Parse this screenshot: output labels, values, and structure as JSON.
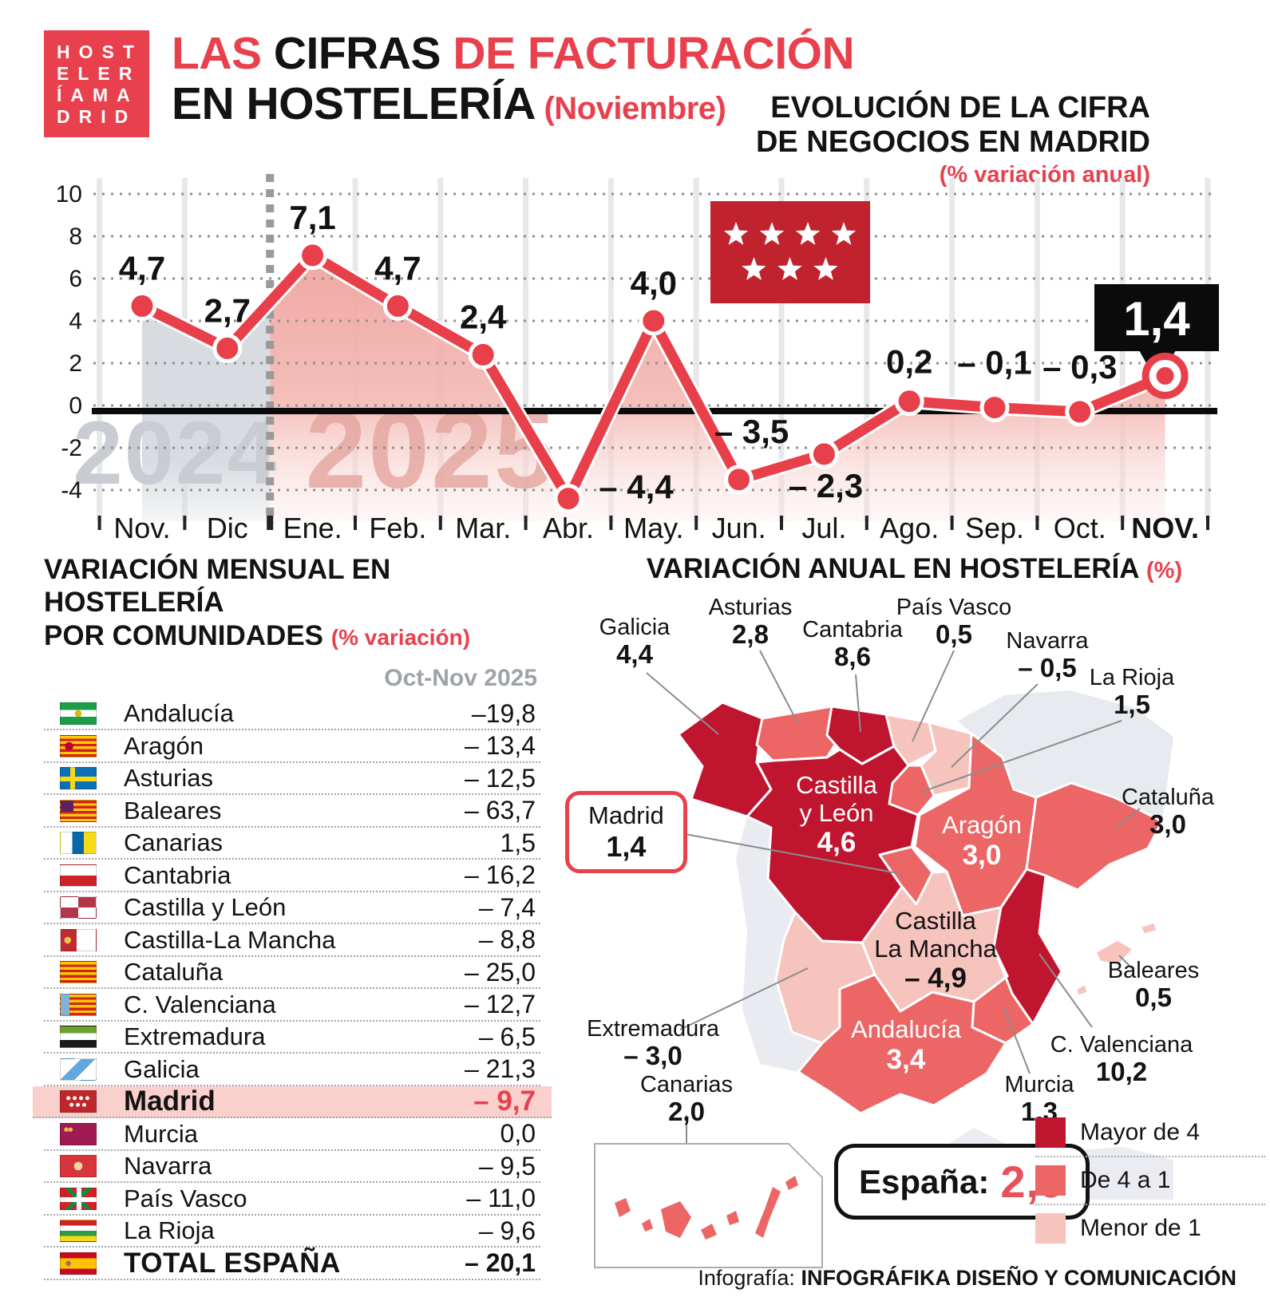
{
  "header": {
    "logo_lines": [
      "HOST",
      "ELER",
      "ÍAMA",
      "DRID"
    ],
    "title_seg_red1": "LAS ",
    "title_seg_black": "CIFRAS ",
    "title_seg_red2": "DE FACTURACIÓN",
    "title_line2_black": "EN HOSTELERÍA",
    "title_line2_red": " (Noviembre)",
    "brand_color": "#E8414D"
  },
  "chart_data": [
    {
      "type": "line",
      "title_line1": "EVOLUCIÓN DE LA CIFRA",
      "title_line2": "DE NEGOCIOS EN MADRID",
      "subtitle": "(% variación anual)",
      "x": [
        "Nov.",
        "Dic",
        "Ene.",
        "Feb.",
        "Mar.",
        "Abr.",
        "May.",
        "Jun.",
        "Jul.",
        "Ago.",
        "Sep.",
        "Oct.",
        "NOV."
      ],
      "values": [
        4.7,
        2.7,
        7.1,
        4.7,
        2.4,
        -4.4,
        4.0,
        -3.5,
        -2.3,
        0.2,
        -0.1,
        -0.3,
        1.4
      ],
      "labels": [
        "4,7",
        "2,7",
        "7,1",
        "4,7",
        "2,4",
        "– 4,4",
        "4,0",
        "– 3,5",
        "– 2,3",
        "0,2",
        "– 0,1",
        "– 0,3",
        "1,4"
      ],
      "yticks": [
        10,
        8,
        6,
        4,
        2,
        0,
        -2,
        -4
      ],
      "ylim": [
        -5.5,
        10.5
      ],
      "grid": "dotted-horizontal",
      "year_left": "2024",
      "year_right": "2025",
      "split_after_index": 1,
      "highlight_index": 12,
      "highlight_label": "1,4",
      "line_color": "#E8404A",
      "area_2024_color": "#D8DBDF",
      "area_2025_color": "#EFA09A",
      "flag_icon": "madrid-flag-seven-stars"
    },
    {
      "type": "table",
      "title_line1": "VARIACIÓN MENSUAL EN HOSTELERÍA",
      "title_line2": "POR COMUNIDADES",
      "title_sub": "(% variación)",
      "col_header": "Oct-Nov 2025",
      "rows": [
        {
          "id": "andalucia",
          "name": "Andalucía",
          "value": "–19,8"
        },
        {
          "id": "aragon",
          "name": "Aragón",
          "value": "– 13,4"
        },
        {
          "id": "asturias",
          "name": "Asturias",
          "value": "– 12,5"
        },
        {
          "id": "baleares",
          "name": "Baleares",
          "value": "– 63,7"
        },
        {
          "id": "canarias",
          "name": "Canarias",
          "value": "1,5"
        },
        {
          "id": "cantabria",
          "name": "Cantabria",
          "value": "– 16,2"
        },
        {
          "id": "castillayleon",
          "name": "Castilla y León",
          "value": "– 7,4"
        },
        {
          "id": "castillalamancha",
          "name": "Castilla-La Mancha",
          "value": "– 8,8"
        },
        {
          "id": "cataluna",
          "name": "Cataluña",
          "value": "– 25,0"
        },
        {
          "id": "cvalenciana",
          "name": "C. Valenciana",
          "value": "– 12,7"
        },
        {
          "id": "extremadura",
          "name": "Extremadura",
          "value": "– 6,5"
        },
        {
          "id": "galicia",
          "name": "Galicia",
          "value": "– 21,3"
        },
        {
          "id": "madrid",
          "name": "Madrid",
          "value": "– 9,7",
          "highlight": true
        },
        {
          "id": "murcia",
          "name": "Murcia",
          "value": "0,0"
        },
        {
          "id": "navarra",
          "name": "Navarra",
          "value": "– 9,5"
        },
        {
          "id": "paisvasco",
          "name": "País Vasco",
          "value": "– 11,0"
        },
        {
          "id": "larioja",
          "name": "La Rioja",
          "value": "– 9,6"
        },
        {
          "id": "espana",
          "name": "TOTAL ESPAÑA",
          "value": "– 20,1",
          "total": true
        }
      ]
    },
    {
      "type": "choropleth",
      "title_main": "VARIACIÓN ANUAL EN HOSTELERÍA",
      "title_sub": "(%)",
      "regions": [
        {
          "id": "galicia",
          "name": "Galicia",
          "value": "4,4",
          "category": ">4"
        },
        {
          "id": "asturias",
          "name": "Asturias",
          "value": "2,8",
          "category": "4-1"
        },
        {
          "id": "cantabria",
          "name": "Cantabria",
          "value": "8,6",
          "category": ">4"
        },
        {
          "id": "paisvasco",
          "name": "País Vasco",
          "value": "0,5",
          "category": "<1"
        },
        {
          "id": "navarra",
          "name": "Navarra",
          "value": "– 0,5",
          "category": "<1"
        },
        {
          "id": "larioja",
          "name": "La Rioja",
          "value": "1,5",
          "category": "4-1"
        },
        {
          "id": "cataluna",
          "name": "Cataluña",
          "value": "3,0",
          "category": "4-1"
        },
        {
          "id": "aragon",
          "name": "Aragón",
          "value": "3,0",
          "category": "4-1"
        },
        {
          "id": "castillayleon",
          "name": "Castilla y León",
          "name_l1": "Castilla",
          "name_l2": "y León",
          "value": "4,6",
          "category": ">4"
        },
        {
          "id": "madrid",
          "name": "Madrid",
          "value": "1,4",
          "category": "4-1"
        },
        {
          "id": "castillalamancha",
          "name": "Castilla La Mancha",
          "name_l1": "Castilla",
          "name_l2": "La Mancha",
          "value": "– 4,9",
          "category": "<1"
        },
        {
          "id": "cvalenciana",
          "name": "C. Valenciana",
          "value": "10,2",
          "category": ">4"
        },
        {
          "id": "murcia",
          "name": "Murcia",
          "value": "1,3",
          "category": "4-1"
        },
        {
          "id": "extremadura",
          "name": "Extremadura",
          "value": "– 3,0",
          "category": "<1"
        },
        {
          "id": "andalucia",
          "name": "Andalucía",
          "value": "3,4",
          "category": "4-1"
        },
        {
          "id": "baleares",
          "name": "Baleares",
          "value": "0,5",
          "category": "<1"
        },
        {
          "id": "canarias",
          "name": "Canarias",
          "value": "2,0",
          "category": "4-1"
        }
      ],
      "total": {
        "label": "España:",
        "value": "2,9"
      },
      "legend": [
        {
          "label": "Mayor de 4",
          "category": ">4"
        },
        {
          "label": "De 4 a 1",
          "category": "4-1"
        },
        {
          "label": "Menor de 1",
          "category": "<1"
        }
      ],
      "category_colors": {
        ">4": "#C0152F",
        "4-1": "#EC6666",
        "<1": "#F6C3BD"
      },
      "legend_position": "bottom-right"
    }
  ],
  "footer": {
    "prefix": "Infografía:",
    "text": "INFOGRÁFIKA DISEÑO Y COMUNICACIÓN"
  }
}
